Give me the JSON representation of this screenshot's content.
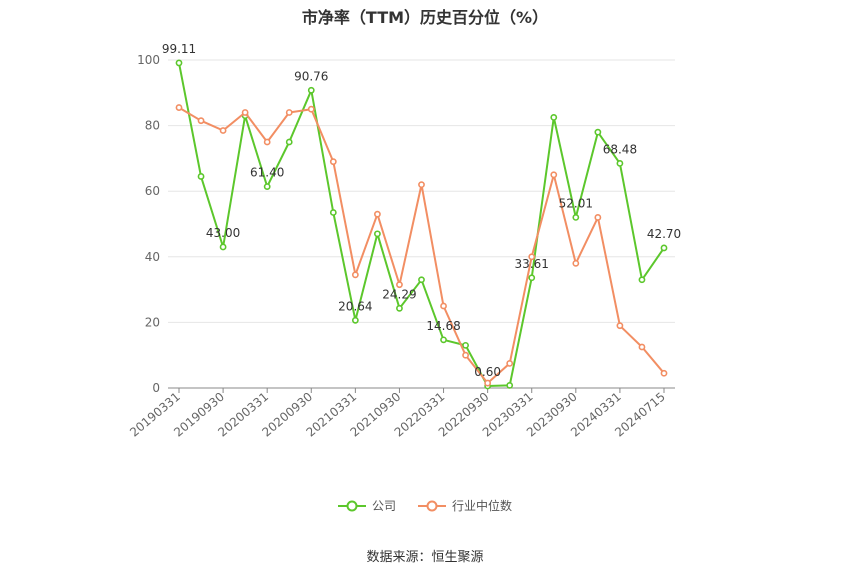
{
  "title": "市净率（TTM）历史百分位（%）",
  "source": "数据来源：恒生聚源",
  "colors": {
    "company": "#5cc72c",
    "industry": "#f28e63",
    "grid": "#e6e6e6",
    "axis": "#888888"
  },
  "chart_data": {
    "type": "line",
    "ylim": [
      0,
      100
    ],
    "yticks": [
      0,
      20,
      40,
      60,
      80,
      100
    ],
    "grid": true,
    "legend_position": "bottom-center",
    "x": [
      "20190331",
      "20190630",
      "20190930",
      "20191231",
      "20200331",
      "20200630",
      "20200930",
      "20201231",
      "20210331",
      "20210630",
      "20210930",
      "20211231",
      "20220331",
      "20220630",
      "20220930",
      "20221231",
      "20230331",
      "20230630",
      "20230930",
      "20231231",
      "20240331",
      "20240630",
      "20240715"
    ],
    "x_tick_labels": [
      "20190331",
      "20190930",
      "20200331",
      "20200930",
      "20210331",
      "20210930",
      "20220331",
      "20220930",
      "20230331",
      "20230930",
      "20240331",
      "20240715"
    ],
    "series": [
      {
        "name": "公司",
        "color": "#5cc72c",
        "values": [
          99.11,
          64.5,
          43.0,
          83.0,
          61.4,
          75.0,
          90.76,
          53.5,
          20.64,
          47.0,
          24.29,
          33.0,
          14.68,
          13.0,
          0.6,
          0.8,
          33.61,
          82.5,
          52.01,
          78.0,
          68.48,
          33.0,
          42.7
        ],
        "labels": {
          "0": "99.11",
          "2": "43.00",
          "4": "61.40",
          "6": "90.76",
          "8": "20.64",
          "10": "24.29",
          "12": "14.68",
          "14": "0.60",
          "16": "33.61",
          "18": "52.01",
          "20": "68.48",
          "22": "42.70"
        }
      },
      {
        "name": "行业中位数",
        "color": "#f28e63",
        "values": [
          85.5,
          81.5,
          78.5,
          84.0,
          75.0,
          84.0,
          85.0,
          69.0,
          34.5,
          53.0,
          31.5,
          62.0,
          25.0,
          10.0,
          1.5,
          7.5,
          40.0,
          65.0,
          38.0,
          52.0,
          19.0,
          12.5,
          4.5
        ]
      }
    ]
  }
}
